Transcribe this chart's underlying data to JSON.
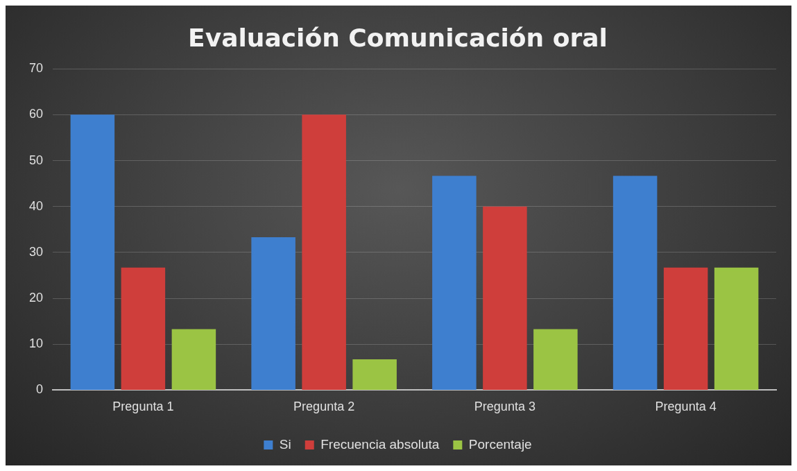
{
  "chart_data": {
    "type": "bar",
    "title": "Evaluación Comunicación oral",
    "categories": [
      "Pregunta 1",
      "Pregunta 2",
      "Pregunta 3",
      "Pregunta 4"
    ],
    "series": [
      {
        "name": "Si",
        "color": "#3f7fd0",
        "values": [
          60,
          33.3,
          46.7,
          46.7
        ]
      },
      {
        "name": "Frecuencia absoluta",
        "color": "#d03e3b",
        "values": [
          26.7,
          60,
          40,
          26.7
        ]
      },
      {
        "name": "Porcentaje",
        "color": "#9bc445",
        "values": [
          13.3,
          6.7,
          13.3,
          26.7
        ]
      }
    ],
    "ylim": [
      0,
      70
    ],
    "yticks": [
      0,
      10,
      20,
      30,
      40,
      50,
      60,
      70
    ],
    "grid": "y",
    "legend": "bottom"
  }
}
